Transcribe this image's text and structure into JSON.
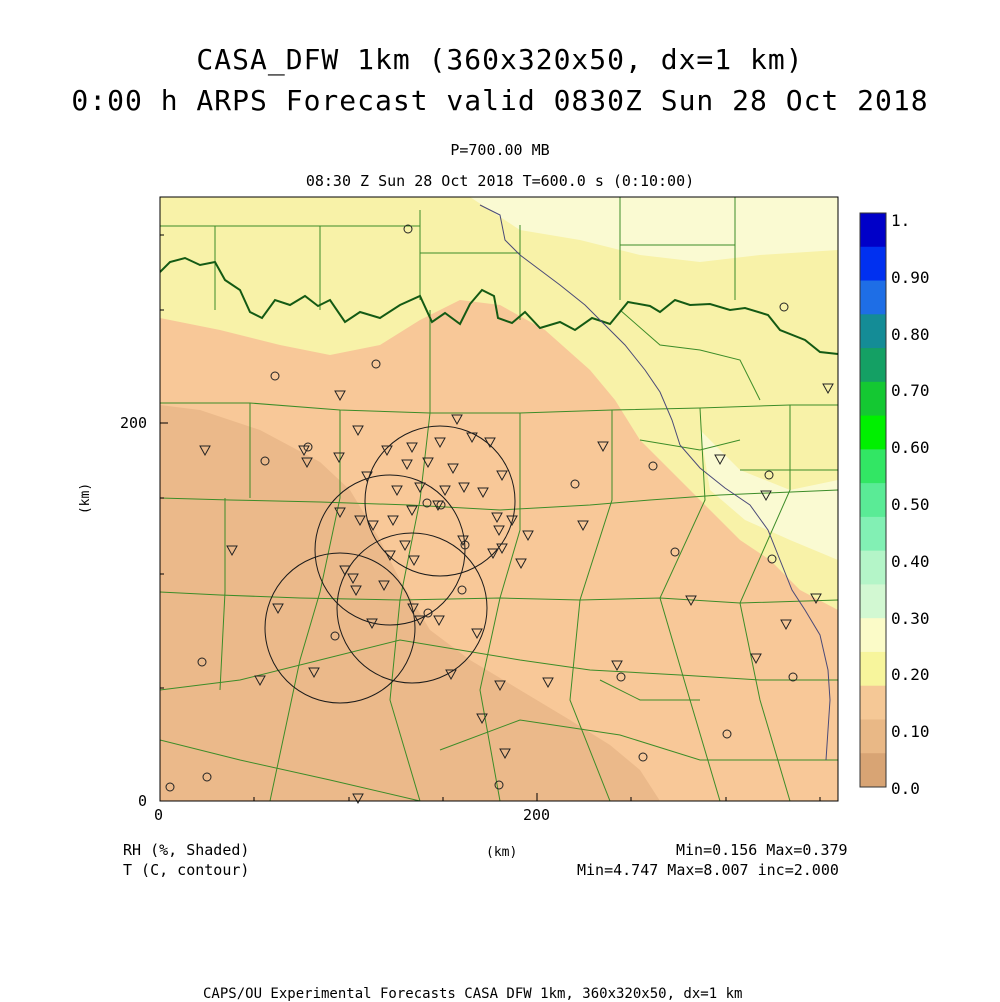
{
  "header": {
    "title_line1": "CASA_DFW 1km (360x320x50, dx=1 km)",
    "title_line2": "0:00 h ARPS Forecast valid 0830Z Sun 28 Oct 2018",
    "pressure": "P=700.00 MB",
    "time_line": "08:30 Z Sun 28 Oct 2018    T=600.0 s (0:10:00)"
  },
  "axes": {
    "x_ticks": [
      "0",
      "200"
    ],
    "y_ticks": [
      "0",
      "200"
    ],
    "x_label": "(km)",
    "y_label": "(km)"
  },
  "colorbar": {
    "labels": [
      "1.",
      "0.90",
      "0.80",
      "0.70",
      "0.60",
      "0.50",
      "0.40",
      "0.30",
      "0.20",
      "0.10",
      "0.0"
    ],
    "colors": [
      "#0000c8",
      "#0030f0",
      "#1e6ee6",
      "#148c96",
      "#14a064",
      "#14c832",
      "#00f000",
      "#32e664",
      "#5aeb96",
      "#82f0b4",
      "#b4f5c8",
      "#d2f8d2",
      "#fbfbc8",
      "#f7f59c",
      "#f5c896",
      "#e9b886",
      "#d8a474"
    ]
  },
  "legend": {
    "field1": "RH (%, Shaded)",
    "field2": "T (C, contour)",
    "xunit": "(km)",
    "stats1": "Min=0.156  Max=0.379",
    "stats2": "Min=4.747  Max=8.007  inc=2.000"
  },
  "footer": "CAPS/OU Experimental Forecasts  CASA DFW 1km, 360x320x50, dx=1 km",
  "map_colors": {
    "rh_020_030": "#f8c898",
    "rh_030_040": "#f8f2a8",
    "rh_lighter": "#fafad2",
    "rh_010_020": "#ebb98a",
    "county_lines": "#3c8c28",
    "state_line": "#145a14",
    "river": "#4a4a78"
  }
}
